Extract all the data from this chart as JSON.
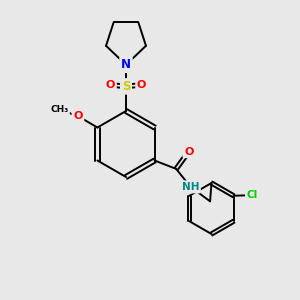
{
  "bg_color": "#e8e8e8",
  "bond_color": "#000000",
  "colors": {
    "N": "#0000ff",
    "O": "#ff0000",
    "S": "#cccc00",
    "Cl": "#00cc00",
    "NH": "#008888"
  },
  "lw": 1.4
}
